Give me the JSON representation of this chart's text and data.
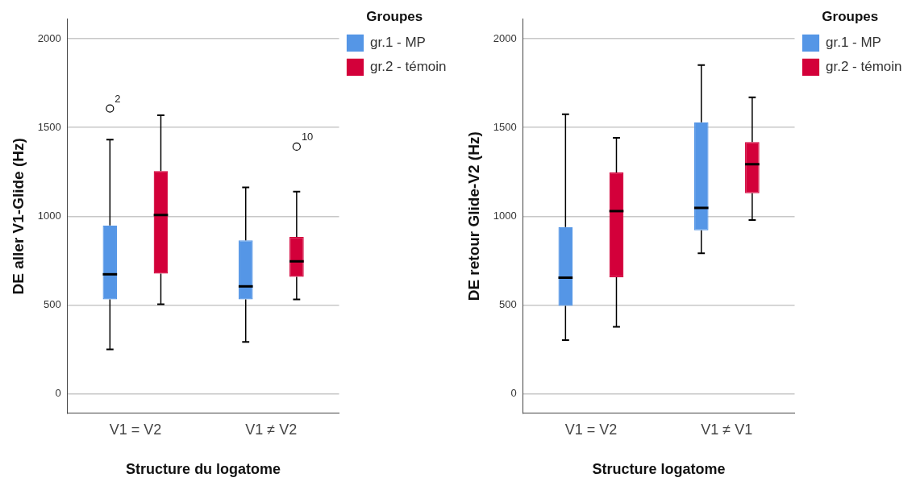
{
  "chart_data": [
    {
      "type": "box",
      "xlabel": "Structure du logatome",
      "ylabel": "DE aller V1-Glide (Hz)",
      "legend_title": "Groupes",
      "legend": "top right",
      "grid": "y",
      "categories": [
        "V1 = V2",
        "V1 ≠ V2"
      ],
      "ylim": [
        -110,
        2110
      ],
      "yticks": [
        0,
        500,
        1000,
        1500,
        2000
      ],
      "series": [
        {
          "name": "gr.1 - MP",
          "color": "#5596e6",
          "boxes": [
            {
              "low": 250,
              "q1": 532,
              "median": 673,
              "q3": 948,
              "high": 1432,
              "outliers": [
                1607
              ]
            },
            {
              "low": 292,
              "q1": 532,
              "median": 605,
              "q3": 864,
              "high": 1162
            }
          ]
        },
        {
          "name": "gr.2 - témoin",
          "color": "#d3003a",
          "boxes": [
            {
              "low": 504,
              "q1": 677,
              "median": 1007,
              "q3": 1255,
              "high": 1569
            },
            {
              "low": 532,
              "q1": 659,
              "median": 746,
              "q3": 883,
              "high": 1139,
              "outliers": [
                1392
              ]
            }
          ]
        }
      ],
      "annotations": [
        "2",
        "10"
      ]
    },
    {
      "type": "box",
      "xlabel": "Structure logatome",
      "ylabel": "DE retour Glide-V2 (Hz)",
      "legend_title": "Groupes",
      "legend": "top right",
      "grid": "y",
      "categories": [
        "V1 = V2",
        "V1 ≠ V1"
      ],
      "ylim": [
        -110,
        2110
      ],
      "yticks": [
        0,
        500,
        1000,
        1500,
        2000
      ],
      "series": [
        {
          "name": "gr.1 - MP",
          "color": "#5596e6",
          "boxes": [
            {
              "low": 302,
              "q1": 495,
              "median": 654,
              "q3": 939,
              "high": 1575
            },
            {
              "low": 791,
              "q1": 921,
              "median": 1047,
              "q3": 1529,
              "high": 1851
            }
          ]
        },
        {
          "name": "gr.2 - témoin",
          "color": "#d3003a",
          "boxes": [
            {
              "low": 377,
              "q1": 656,
              "median": 1029,
              "q3": 1246,
              "high": 1442
            },
            {
              "low": 979,
              "q1": 1130,
              "median": 1293,
              "q3": 1418,
              "high": 1670
            }
          ]
        }
      ]
    }
  ]
}
